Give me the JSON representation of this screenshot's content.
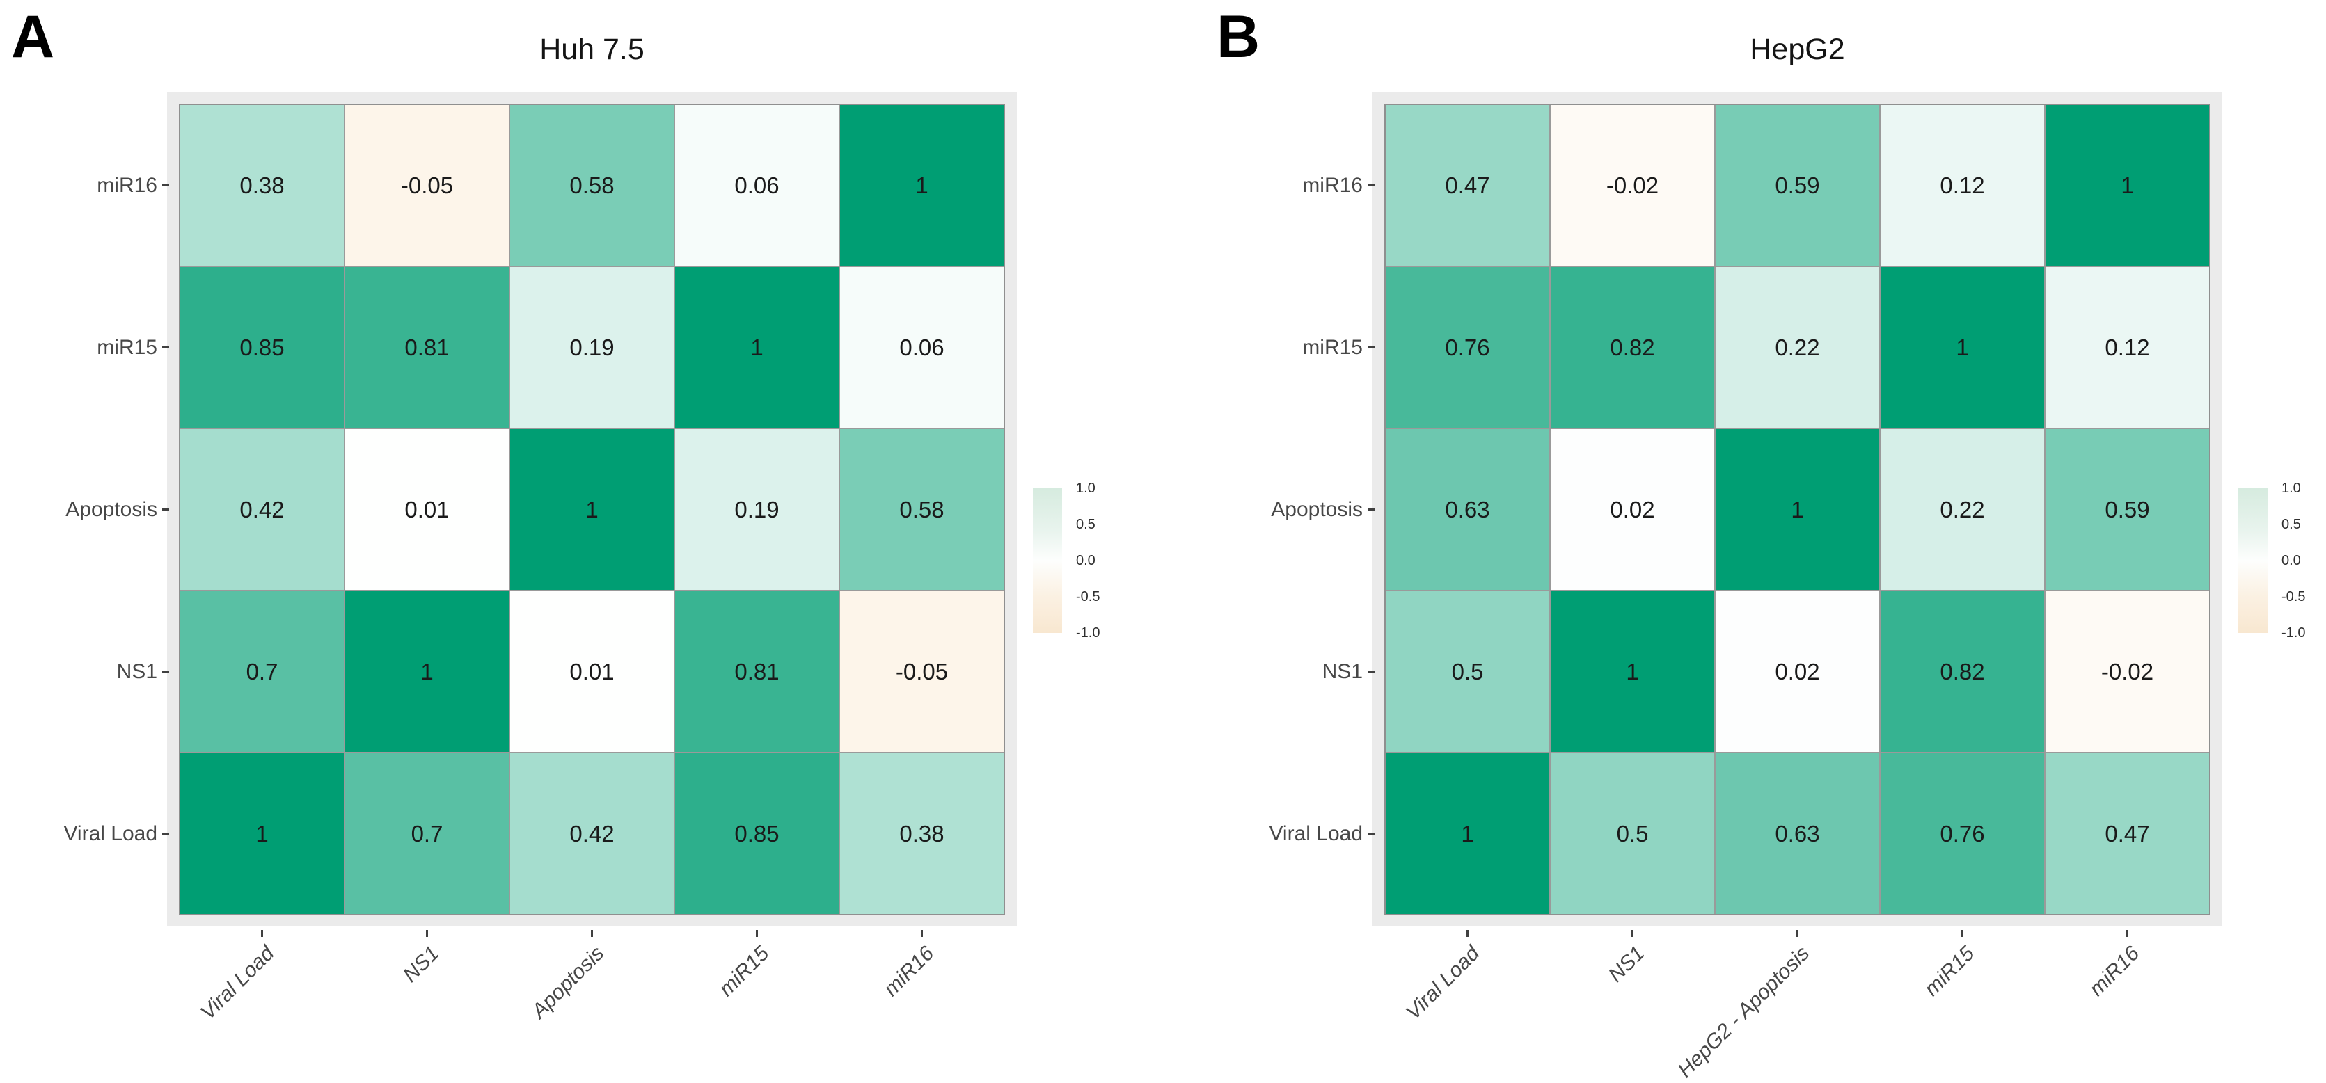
{
  "figure": {
    "background": "#ffffff",
    "panel_background": "#ebebeb",
    "cell_border_color": "#9a9a9a",
    "positive_color_max": "#009E73",
    "negative_color_max": "#E69614",
    "value_text_color": "#1a1a1a",
    "axis_text_color": "#474747"
  },
  "chart_data": [
    {
      "type": "heatmap",
      "panel_label": "A",
      "title": "Huh 7.5",
      "x_categories": [
        "Viral Load",
        "NS1",
        "Apoptosis",
        "miR15",
        "miR16"
      ],
      "y_categories_top_to_bottom": [
        "miR16",
        "miR15",
        "Apoptosis",
        "NS1",
        "Viral Load"
      ],
      "rows_top_to_bottom": [
        [
          0.38,
          -0.05,
          0.58,
          0.06,
          1
        ],
        [
          0.85,
          0.81,
          0.19,
          1,
          0.06
        ],
        [
          0.42,
          0.01,
          1,
          0.19,
          0.58
        ],
        [
          0.7,
          1,
          0.01,
          0.81,
          -0.05
        ],
        [
          1,
          0.7,
          0.42,
          0.85,
          0.38
        ]
      ],
      "value_range": [
        -1,
        1
      ],
      "colorbar_ticks": [
        "1.0",
        "0.5",
        "0.0",
        "-0.5",
        "-1.0"
      ],
      "legend_position": "right",
      "grid": false
    },
    {
      "type": "heatmap",
      "panel_label": "B",
      "title": "HepG2",
      "x_categories": [
        "Viral Load",
        "NS1",
        "HepG2 - Apoptosis",
        "miR15",
        "miR16"
      ],
      "y_categories_top_to_bottom": [
        "miR16",
        "miR15",
        "Apoptosis",
        "NS1",
        "Viral Load"
      ],
      "rows_top_to_bottom": [
        [
          0.47,
          -0.02,
          0.59,
          0.12,
          1
        ],
        [
          0.76,
          0.82,
          0.22,
          1,
          0.12
        ],
        [
          0.63,
          0.02,
          1,
          0.22,
          0.59
        ],
        [
          0.5,
          1,
          0.02,
          0.82,
          -0.02
        ],
        [
          1,
          0.5,
          0.63,
          0.76,
          0.47
        ]
      ],
      "value_range": [
        -1,
        1
      ],
      "colorbar_ticks": [
        "1.0",
        "0.5",
        "0.0",
        "-0.5",
        "-1.0"
      ],
      "legend_position": "right",
      "grid": false
    }
  ]
}
